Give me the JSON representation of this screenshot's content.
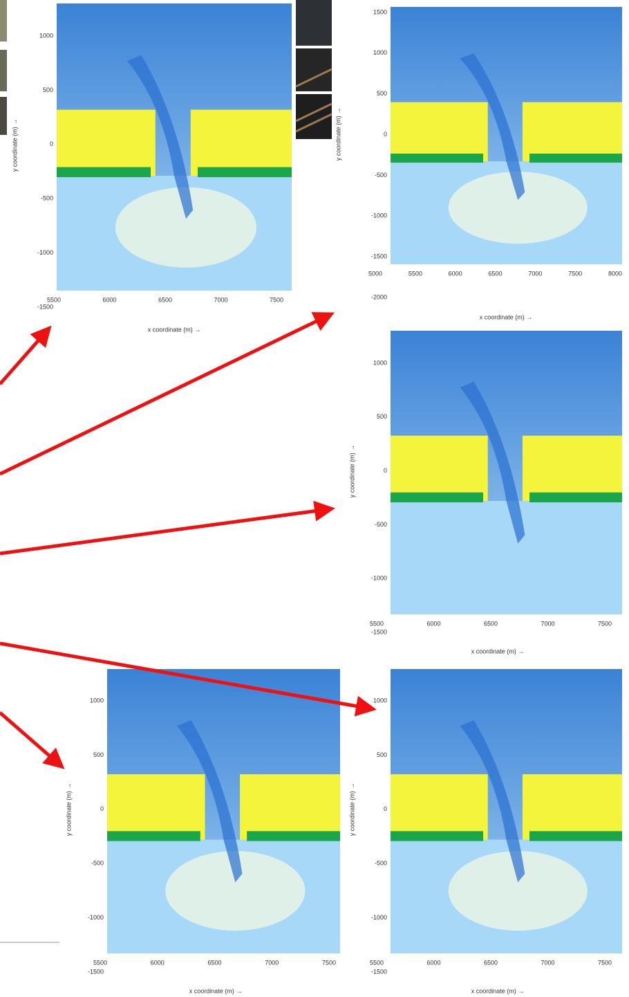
{
  "panels": [
    {
      "xlabel": "x coordinate (m) →",
      "ylabel": "y coordinate (m) →",
      "xticks": [
        5500,
        6000,
        6500,
        7000,
        7500
      ],
      "yticks": [
        1000,
        500,
        0,
        -500,
        -1000,
        -1500
      ]
    },
    {
      "xlabel": "x coordinate (m) →",
      "ylabel": "y coordinate (m) →",
      "xticks": [
        5000,
        5500,
        6000,
        6500,
        7000,
        7500,
        8000
      ],
      "yticks": [
        1500,
        1000,
        500,
        0,
        -500,
        -1000,
        -1500,
        -2000
      ]
    },
    {
      "xlabel": "x coordinate (m) →",
      "ylabel": "y coordinate (m) →",
      "xticks": [
        5500,
        6000,
        6500,
        7000,
        7500
      ],
      "yticks": [
        1000,
        500,
        0,
        -500,
        -1000,
        -1500
      ]
    },
    {
      "xlabel": "x coordinate (m) →",
      "ylabel": "y coordinate (m) →",
      "xticks": [
        5500,
        6000,
        6500,
        7000,
        7500
      ],
      "yticks": [
        1000,
        500,
        0,
        -500,
        -1000,
        -1500
      ]
    },
    {
      "xlabel": "x coordinate (m) →",
      "ylabel": "y coordinate (m) →",
      "xticks": [
        5500,
        6000,
        6500,
        7000,
        7500
      ],
      "yticks": [
        1000,
        500,
        0,
        -500,
        -1000,
        -1500
      ]
    }
  ]
}
